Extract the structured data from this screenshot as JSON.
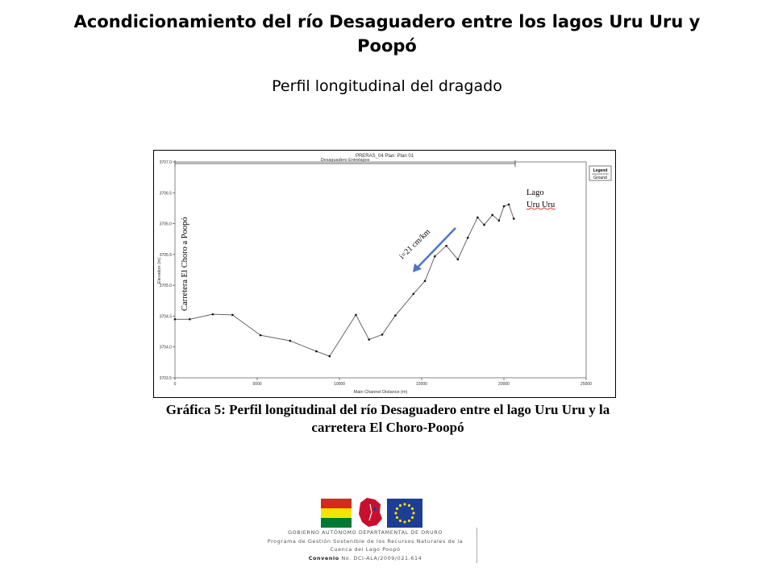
{
  "slide": {
    "title": "Acondicionamiento del río Desaguadero entre los lagos Uru Uru y Poopó",
    "subtitle": "Perfil longitudinal del dragado"
  },
  "caption": "Gráfica 5: Perfil longitudinal del río Desaguadero entre el lago Uru Uru y la carretera El Choro-Poopó",
  "footer": {
    "line1": "GOBIERNO AUTÓNOMO DEPARTAMENTAL DE ORURO",
    "line2": "Programa de Gestión Sostenible de los Recursos Naturales  de la",
    "line3": "Cuenca del Lago Poopó",
    "line4_bold": "Convenio",
    "line4_rest": " No. DCI-ALA/2009/021.614"
  },
  "colors": {
    "chart_line": "#555555",
    "arrow": "#4a76c8",
    "flag_bo": [
      "#d52b1e",
      "#f4e400",
      "#007934"
    ],
    "eu_blue": "#1c3f94",
    "eu_stars": "#ffdd00",
    "seal_red": "#c8102e"
  },
  "chart_data": {
    "type": "line",
    "header": "PRERAS_04      Plan: Plan 01",
    "reach_label": "Desaguadero Entrelagos",
    "xlabel": "Main Channel Distance (m)",
    "ylabel": "Elevation (m)",
    "xlim": [
      0,
      25000
    ],
    "ylim": [
      3703.5,
      3707.0
    ],
    "xticks": [
      "0",
      "5000",
      "10000",
      "15000",
      "20000",
      "25000"
    ],
    "yticks": [
      "3703.5",
      "3704.0",
      "3704.5",
      "3705.0",
      "3705.5",
      "3706.0",
      "3706.5",
      "3707.0"
    ],
    "legend": {
      "title": "Legend",
      "entries": [
        "Ground"
      ],
      "position": "top-right"
    },
    "series": [
      {
        "name": "Ground",
        "x": [
          0,
          900,
          2300,
          3500,
          5200,
          7000,
          8600,
          9400,
          11000,
          11800,
          12600,
          13400,
          14500,
          15200,
          15800,
          16500,
          17200,
          17800,
          18400,
          18800,
          19300,
          19700,
          20000,
          20300,
          20600
        ],
        "y": [
          3704.45,
          3704.45,
          3704.53,
          3704.52,
          3704.19,
          3704.1,
          3703.93,
          3703.85,
          3704.52,
          3704.12,
          3704.2,
          3704.51,
          3704.86,
          3705.07,
          3705.47,
          3705.64,
          3705.42,
          3705.77,
          3706.1,
          3705.98,
          3706.14,
          3706.05,
          3706.28,
          3706.31,
          3706.08
        ]
      }
    ],
    "annotations": {
      "left_label": "Carretera El Choro a Poopó",
      "lake_label_1": "Lago",
      "lake_label_2": "Uru Uru",
      "slope_label": "i=21 cm/km"
    }
  }
}
